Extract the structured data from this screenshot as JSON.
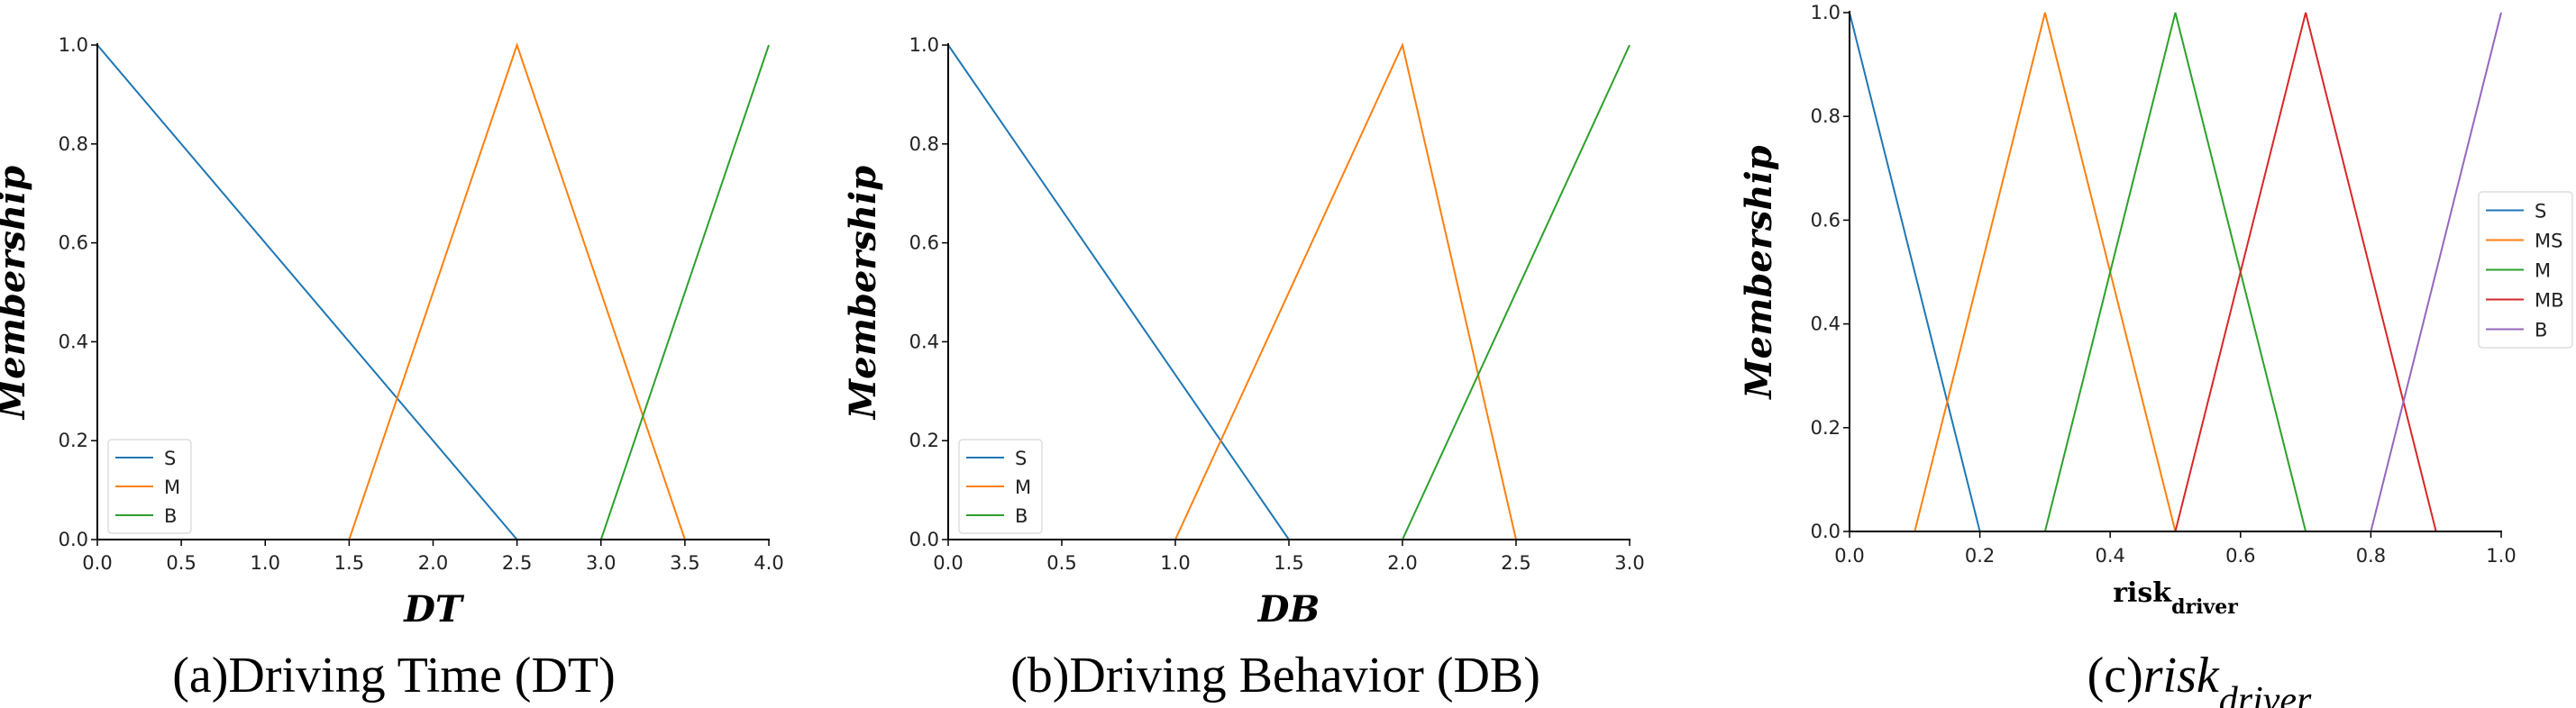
{
  "chart_data": [
    {
      "type": "line",
      "caption": {
        "prefix": "(a)Driving Time (DT)",
        "main": "",
        "sub": ""
      },
      "xlabel": {
        "main": "DT",
        "sub": ""
      },
      "ylabel": "Membership",
      "xlim": [
        0,
        4
      ],
      "ylim": [
        0,
        1
      ],
      "xticks": [
        "0.0",
        "0.5",
        "1.0",
        "1.5",
        "2.0",
        "2.5",
        "3.0",
        "3.5",
        "4.0"
      ],
      "yticks": [
        "0.0",
        "0.2",
        "0.4",
        "0.6",
        "0.8",
        "1.0"
      ],
      "grid": false,
      "legend_placement": "lower-left",
      "series": [
        {
          "name": "S",
          "color": "#1f77b4",
          "x": [
            0,
            2.5,
            4
          ],
          "y": [
            1,
            0,
            0
          ]
        },
        {
          "name": "M",
          "color": "#ff7f0e",
          "x": [
            0,
            1.5,
            2.5,
            3.5,
            4
          ],
          "y": [
            0,
            0,
            1,
            0,
            0
          ]
        },
        {
          "name": "B",
          "color": "#2ca02c",
          "x": [
            0,
            3,
            4
          ],
          "y": [
            0,
            0,
            1
          ]
        }
      ]
    },
    {
      "type": "line",
      "caption": {
        "prefix": "(b)Driving Behavior (DB)",
        "main": "",
        "sub": ""
      },
      "xlabel": {
        "main": "DB",
        "sub": ""
      },
      "ylabel": "Membership",
      "xlim": [
        0,
        3
      ],
      "ylim": [
        0,
        1
      ],
      "xticks": [
        "0.0",
        "0.5",
        "1.0",
        "1.5",
        "2.0",
        "2.5",
        "3.0"
      ],
      "yticks": [
        "0.0",
        "0.2",
        "0.4",
        "0.6",
        "0.8",
        "1.0"
      ],
      "grid": false,
      "legend_placement": "lower-left",
      "series": [
        {
          "name": "S",
          "color": "#1f77b4",
          "x": [
            0,
            1.5,
            3
          ],
          "y": [
            1,
            0,
            0
          ]
        },
        {
          "name": "M",
          "color": "#ff7f0e",
          "x": [
            0,
            1,
            2,
            2.5,
            3
          ],
          "y": [
            0,
            0,
            1,
            0,
            0
          ]
        },
        {
          "name": "B",
          "color": "#2ca02c",
          "x": [
            0,
            2,
            3
          ],
          "y": [
            0,
            0,
            1
          ]
        }
      ]
    },
    {
      "type": "line",
      "caption": {
        "prefix": "(c)",
        "main": "risk",
        "sub": "driver"
      },
      "xlabel": {
        "main": "risk",
        "sub": "driver"
      },
      "ylabel": "Membership",
      "xlim": [
        0,
        1
      ],
      "ylim": [
        0,
        1
      ],
      "xticks": [
        "0.0",
        "0.2",
        "0.4",
        "0.6",
        "0.8",
        "1.0"
      ],
      "yticks": [
        "0.0",
        "0.2",
        "0.4",
        "0.6",
        "0.8",
        "1.0"
      ],
      "grid": false,
      "legend_placement": "center-right",
      "series": [
        {
          "name": "S",
          "color": "#1f77b4",
          "x": [
            0,
            0.2,
            1
          ],
          "y": [
            1,
            0,
            0
          ]
        },
        {
          "name": "MS",
          "color": "#ff7f0e",
          "x": [
            0,
            0.1,
            0.3,
            0.5,
            1
          ],
          "y": [
            0,
            0,
            1,
            0,
            0
          ]
        },
        {
          "name": "M",
          "color": "#2ca02c",
          "x": [
            0,
            0.3,
            0.5,
            0.7,
            1
          ],
          "y": [
            0,
            0,
            1,
            0,
            0
          ]
        },
        {
          "name": "MB",
          "color": "#d62728",
          "x": [
            0,
            0.5,
            0.7,
            0.9,
            1
          ],
          "y": [
            0,
            0,
            1,
            0,
            0
          ]
        },
        {
          "name": "B",
          "color": "#9467bd",
          "x": [
            0,
            0.8,
            1
          ],
          "y": [
            0,
            0,
            1
          ]
        }
      ]
    }
  ]
}
